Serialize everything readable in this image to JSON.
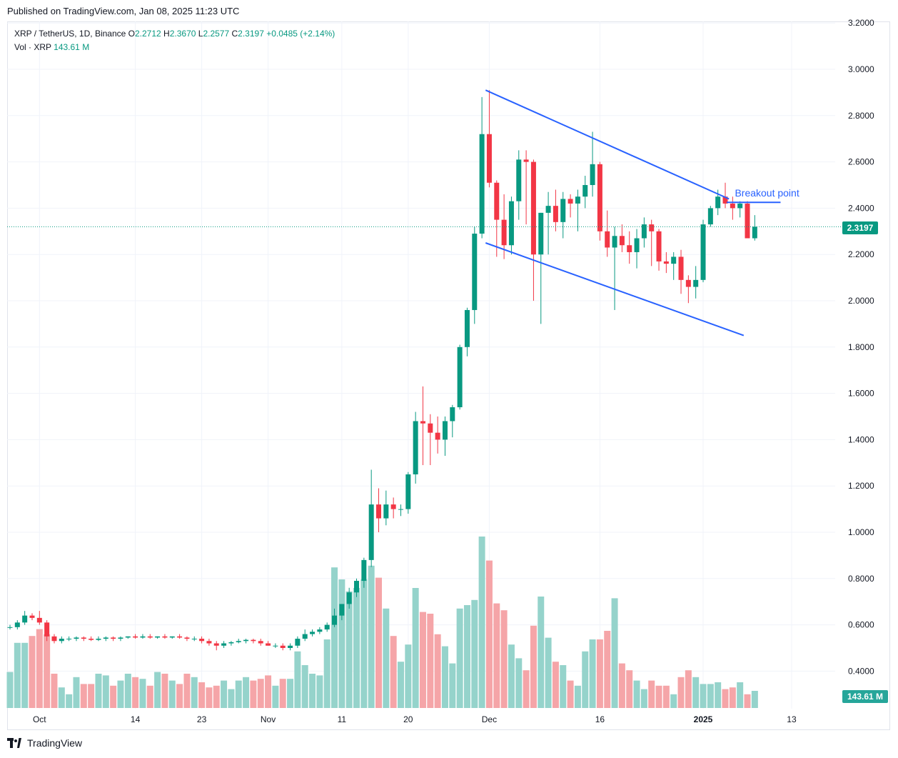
{
  "header": {
    "published": "Published on TradingView.com, Jan 08, 2025 11:23 UTC"
  },
  "legend": {
    "symbol": "XRP / TetherUS, 1D, Binance",
    "o_label": "O",
    "o": "2.2712",
    "h_label": "H",
    "h": "2.3670",
    "l_label": "L",
    "l": "2.2577",
    "c_label": "C",
    "c": "2.3197",
    "change": "+0.0485 (+2.14%)",
    "vol_label": "Vol · XRP",
    "vol": "143.61 M"
  },
  "badges": {
    "price": "2.3197",
    "volume": "143.61 M"
  },
  "footer": {
    "brand": "TradingView"
  },
  "annotation": {
    "text": "Breakout point"
  },
  "colors": {
    "up": "#089981",
    "down": "#f23645",
    "vol_up": "#95d3cb",
    "vol_down": "#f5a5a8",
    "trendline": "#2962ff"
  },
  "chart_data": {
    "type": "candlestick",
    "y_ticks": [
      "3.2000",
      "3.0000",
      "2.8000",
      "2.6000",
      "2.4000",
      "2.2000",
      "2.0000",
      "1.8000",
      "1.6000",
      "1.4000",
      "1.2000",
      "1.0000",
      "0.8000",
      "0.6000",
      "0.4000"
    ],
    "ylim": [
      0.39,
      3.2
    ],
    "x_ticks": [
      "Oct",
      "14",
      "23",
      "Nov",
      "11",
      "20",
      "Dec",
      "16",
      "2025",
      "13"
    ],
    "last_close": 2.3197,
    "candles": [
      [
        0.59,
        0.6,
        0.58,
        0.59
      ],
      [
        0.59,
        0.62,
        0.58,
        0.61
      ],
      [
        0.61,
        0.66,
        0.6,
        0.64
      ],
      [
        0.64,
        0.65,
        0.62,
        0.63
      ],
      [
        0.63,
        0.66,
        0.6,
        0.61
      ],
      [
        0.61,
        0.62,
        0.53,
        0.55
      ],
      [
        0.55,
        0.56,
        0.52,
        0.53
      ],
      [
        0.53,
        0.55,
        0.52,
        0.54
      ],
      [
        0.54,
        0.55,
        0.53,
        0.54
      ],
      [
        0.54,
        0.55,
        0.53,
        0.545
      ],
      [
        0.545,
        0.55,
        0.53,
        0.54
      ],
      [
        0.54,
        0.55,
        0.53,
        0.535
      ],
      [
        0.535,
        0.55,
        0.53,
        0.54
      ],
      [
        0.54,
        0.55,
        0.53,
        0.545
      ],
      [
        0.545,
        0.55,
        0.53,
        0.54
      ],
      [
        0.54,
        0.55,
        0.53,
        0.545
      ],
      [
        0.545,
        0.55,
        0.54,
        0.55
      ],
      [
        0.55,
        0.56,
        0.54,
        0.545
      ],
      [
        0.545,
        0.56,
        0.54,
        0.55
      ],
      [
        0.55,
        0.56,
        0.54,
        0.545
      ],
      [
        0.545,
        0.55,
        0.54,
        0.55
      ],
      [
        0.55,
        0.56,
        0.54,
        0.545
      ],
      [
        0.545,
        0.55,
        0.54,
        0.55
      ],
      [
        0.55,
        0.56,
        0.54,
        0.545
      ],
      [
        0.545,
        0.55,
        0.53,
        0.54
      ],
      [
        0.54,
        0.55,
        0.53,
        0.54
      ],
      [
        0.54,
        0.55,
        0.52,
        0.53
      ],
      [
        0.53,
        0.54,
        0.51,
        0.52
      ],
      [
        0.52,
        0.53,
        0.49,
        0.51
      ],
      [
        0.51,
        0.53,
        0.5,
        0.52
      ],
      [
        0.52,
        0.53,
        0.51,
        0.525
      ],
      [
        0.525,
        0.54,
        0.52,
        0.53
      ],
      [
        0.53,
        0.54,
        0.52,
        0.535
      ],
      [
        0.535,
        0.54,
        0.52,
        0.53
      ],
      [
        0.53,
        0.54,
        0.51,
        0.52
      ],
      [
        0.52,
        0.53,
        0.51,
        0.51
      ],
      [
        0.51,
        0.52,
        0.5,
        0.51
      ],
      [
        0.51,
        0.52,
        0.49,
        0.5
      ],
      [
        0.5,
        0.52,
        0.49,
        0.51
      ],
      [
        0.51,
        0.55,
        0.5,
        0.54
      ],
      [
        0.54,
        0.58,
        0.53,
        0.56
      ],
      [
        0.56,
        0.58,
        0.55,
        0.57
      ],
      [
        0.57,
        0.59,
        0.56,
        0.58
      ],
      [
        0.58,
        0.61,
        0.57,
        0.6
      ],
      [
        0.6,
        0.67,
        0.59,
        0.64
      ],
      [
        0.64,
        0.69,
        0.62,
        0.69
      ],
      [
        0.69,
        0.76,
        0.67,
        0.74
      ],
      [
        0.74,
        0.8,
        0.72,
        0.79
      ],
      [
        0.79,
        0.89,
        0.76,
        0.88
      ],
      [
        0.88,
        1.27,
        0.85,
        1.12
      ],
      [
        1.12,
        1.19,
        1.0,
        1.06
      ],
      [
        1.06,
        1.18,
        1.03,
        1.12
      ],
      [
        1.12,
        1.15,
        1.06,
        1.1
      ],
      [
        1.1,
        1.12,
        1.07,
        1.1
      ],
      [
        1.1,
        1.26,
        1.08,
        1.25
      ],
      [
        1.25,
        1.52,
        1.21,
        1.48
      ],
      [
        1.48,
        1.63,
        1.29,
        1.47
      ],
      [
        1.47,
        1.51,
        1.29,
        1.43
      ],
      [
        1.43,
        1.5,
        1.34,
        1.4
      ],
      [
        1.4,
        1.5,
        1.33,
        1.48
      ],
      [
        1.48,
        1.55,
        1.41,
        1.54
      ],
      [
        1.54,
        1.81,
        1.53,
        1.8
      ],
      [
        1.8,
        1.97,
        1.76,
        1.96
      ],
      [
        1.96,
        2.32,
        1.9,
        2.29
      ],
      [
        2.29,
        2.88,
        2.27,
        2.72
      ],
      [
        2.72,
        2.91,
        2.49,
        2.51
      ],
      [
        2.51,
        2.52,
        2.19,
        2.35
      ],
      [
        2.35,
        2.46,
        2.18,
        2.24
      ],
      [
        2.24,
        2.45,
        2.2,
        2.43
      ],
      [
        2.43,
        2.65,
        2.35,
        2.61
      ],
      [
        2.61,
        2.65,
        2.33,
        2.6
      ],
      [
        2.6,
        2.61,
        2.0,
        2.2
      ],
      [
        2.2,
        2.38,
        1.9,
        2.38
      ],
      [
        2.38,
        2.47,
        2.2,
        2.41
      ],
      [
        2.41,
        2.48,
        2.3,
        2.34
      ],
      [
        2.34,
        2.47,
        2.27,
        2.44
      ],
      [
        2.44,
        2.46,
        2.36,
        2.42
      ],
      [
        2.42,
        2.48,
        2.3,
        2.45
      ],
      [
        2.45,
        2.54,
        2.4,
        2.5
      ],
      [
        2.5,
        2.73,
        2.45,
        2.59
      ],
      [
        2.59,
        2.6,
        2.26,
        2.3
      ],
      [
        2.3,
        2.39,
        2.19,
        2.23
      ],
      [
        2.23,
        2.32,
        1.96,
        2.28
      ],
      [
        2.28,
        2.33,
        2.21,
        2.24
      ],
      [
        2.24,
        2.3,
        2.16,
        2.21
      ],
      [
        2.21,
        2.31,
        2.14,
        2.27
      ],
      [
        2.27,
        2.36,
        2.23,
        2.33
      ],
      [
        2.33,
        2.35,
        2.15,
        2.3
      ],
      [
        2.3,
        2.31,
        2.13,
        2.17
      ],
      [
        2.17,
        2.21,
        2.12,
        2.16
      ],
      [
        2.16,
        2.21,
        2.09,
        2.19
      ],
      [
        2.19,
        2.22,
        2.03,
        2.09
      ],
      [
        2.09,
        2.11,
        1.99,
        2.06
      ],
      [
        2.06,
        2.15,
        2.01,
        2.09
      ],
      [
        2.09,
        2.35,
        2.08,
        2.33
      ],
      [
        2.33,
        2.41,
        2.32,
        2.4
      ],
      [
        2.4,
        2.48,
        2.37,
        2.45
      ],
      [
        2.45,
        2.51,
        2.4,
        2.42
      ],
      [
        2.42,
        2.45,
        2.35,
        2.4
      ],
      [
        2.4,
        2.43,
        2.36,
        2.42
      ],
      [
        2.42,
        2.43,
        2.27,
        2.27
      ],
      [
        2.27,
        2.37,
        2.26,
        2.32
      ]
    ],
    "volume_relative": [
      0.21,
      0.38,
      0.38,
      0.42,
      0.46,
      0.43,
      0.2,
      0.12,
      0.08,
      0.18,
      0.14,
      0.14,
      0.2,
      0.19,
      0.13,
      0.16,
      0.2,
      0.18,
      0.17,
      0.13,
      0.21,
      0.2,
      0.16,
      0.14,
      0.2,
      0.18,
      0.15,
      0.12,
      0.13,
      0.16,
      0.11,
      0.16,
      0.18,
      0.16,
      0.17,
      0.19,
      0.13,
      0.17,
      0.17,
      0.33,
      0.25,
      0.2,
      0.19,
      0.4,
      0.82,
      0.75,
      0.68,
      0.7,
      0.75,
      0.83,
      0.76,
      0.58,
      0.42,
      0.27,
      0.37,
      0.7,
      0.56,
      0.55,
      0.43,
      0.36,
      0.26,
      0.58,
      0.6,
      0.63,
      1.0,
      0.86,
      0.61,
      0.57,
      0.37,
      0.29,
      0.22,
      0.48,
      0.65,
      0.41,
      0.27,
      0.25,
      0.16,
      0.13,
      0.33,
      0.4,
      0.4,
      0.45,
      0.64,
      0.26,
      0.22,
      0.16,
      0.11,
      0.16,
      0.13,
      0.13,
      0.08,
      0.18,
      0.22,
      0.18,
      0.14,
      0.14,
      0.15,
      0.11,
      0.12,
      0.15,
      0.08,
      0.1
    ],
    "trendlines": [
      {
        "name": "upper",
        "from": [
          64.5,
          2.91
        ],
        "to": [
          97.5,
          2.44
        ]
      },
      {
        "name": "lower",
        "from": [
          64.5,
          2.25
        ],
        "to": [
          99.5,
          1.85
        ]
      },
      {
        "name": "breakout",
        "from": [
          97.2,
          2.425
        ],
        "to": [
          104.5,
          2.425
        ]
      }
    ]
  }
}
